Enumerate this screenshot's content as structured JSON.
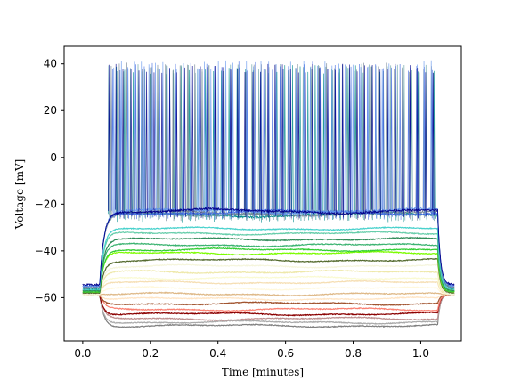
{
  "chart_data": {
    "type": "line",
    "title": "",
    "xlabel": "Time [minutes]",
    "ylabel": "Voltage [mV]",
    "xlim": [
      -0.055,
      1.12
    ],
    "ylim": [
      -78.5,
      47.5
    ],
    "x_ticks": [
      0.0,
      0.2,
      0.4,
      0.6,
      0.8,
      1.0
    ],
    "x_tick_labels": [
      "0.0",
      "0.2",
      "0.4",
      "0.6",
      "0.8",
      "1.0"
    ],
    "y_ticks": [
      -60,
      -40,
      -20,
      0,
      20,
      40
    ],
    "y_tick_labels": [
      "−60",
      "−40",
      "−20",
      "0",
      "20",
      "40"
    ],
    "grid": false,
    "legend": "none",
    "stimulus": {
      "onset": 0.05,
      "offset": 1.05,
      "end": 1.1
    },
    "baseline_region": [
      0.0,
      0.05
    ],
    "series": [
      {
        "color": "#808080",
        "rest": -58.0,
        "plateau": -72.0,
        "spiking": false
      },
      {
        "color": "#a9a9a9",
        "rest": -58.5,
        "plateau": -70.5,
        "spiking": false
      },
      {
        "color": "#bc8f8f",
        "rest": -58.5,
        "plateau": -69.0,
        "spiking": false
      },
      {
        "color": "#8b0000",
        "rest": -58.5,
        "plateau": -67.0,
        "spiking": false
      },
      {
        "color": "#fa8072",
        "rest": -58.5,
        "plateau": -65.0,
        "spiking": false
      },
      {
        "color": "#a0522d",
        "rest": -58.5,
        "plateau": -62.5,
        "spiking": false
      },
      {
        "color": "#ffe4c4",
        "rest": -58.5,
        "plateau": -60.5,
        "spiking": false
      },
      {
        "color": "#deb887",
        "rest": -58.5,
        "plateau": -58.5,
        "spiking": false
      },
      {
        "color": "#fff8dc",
        "rest": -58.5,
        "plateau": -56.0,
        "spiking": false
      },
      {
        "color": "#f5deb3",
        "rest": -58.5,
        "plateau": -53.5,
        "spiking": false
      },
      {
        "color": "#fafad2",
        "rest": -58.5,
        "plateau": -51.5,
        "spiking": false
      },
      {
        "color": "#eee8aa",
        "rest": -58.5,
        "plateau": -49.0,
        "spiking": false
      },
      {
        "color": "#f5f5dc",
        "rest": -58.5,
        "plateau": -46.5,
        "spiking": false
      },
      {
        "color": "#556b2f",
        "rest": -58.0,
        "plateau": -44.0,
        "spiking": false
      },
      {
        "color": "#7cfc00",
        "rest": -57.5,
        "plateau": -41.0,
        "spiking": false
      },
      {
        "color": "#32cd32",
        "rest": -57.5,
        "plateau": -39.5,
        "spiking": false
      },
      {
        "color": "#3cb371",
        "rest": -57.0,
        "plateau": -37.5,
        "spiking": false
      },
      {
        "color": "#2e8b57",
        "rest": -57.0,
        "plateau": -35.0,
        "spiking": false
      },
      {
        "color": "#66cdaa",
        "rest": -56.5,
        "plateau": -32.5,
        "spiking": false
      },
      {
        "color": "#48d1cc",
        "rest": -56.5,
        "plateau": -30.5,
        "spiking": false
      },
      {
        "color": "#008b8b",
        "rest": -56.0,
        "plateau": -24.5,
        "spiking": true,
        "peak": 39.5
      },
      {
        "color": "#5f9ea0",
        "rest": -56.0,
        "plateau": -24.0,
        "spiking": true,
        "peak": 40.0
      },
      {
        "color": "#708090",
        "rest": -55.5,
        "plateau": -24.0,
        "spiking": true,
        "peak": 40.5
      },
      {
        "color": "#4169e1",
        "rest": -55.0,
        "plateau": -23.5,
        "spiking": true,
        "peak": 41.0
      },
      {
        "color": "#6495ed",
        "rest": -55.0,
        "plateau": -23.0,
        "spiking": true,
        "peak": 41.5
      },
      {
        "color": "#00008b",
        "rest": -54.5,
        "plateau": -23.0,
        "spiking": true,
        "peak": 40.0
      }
    ]
  }
}
